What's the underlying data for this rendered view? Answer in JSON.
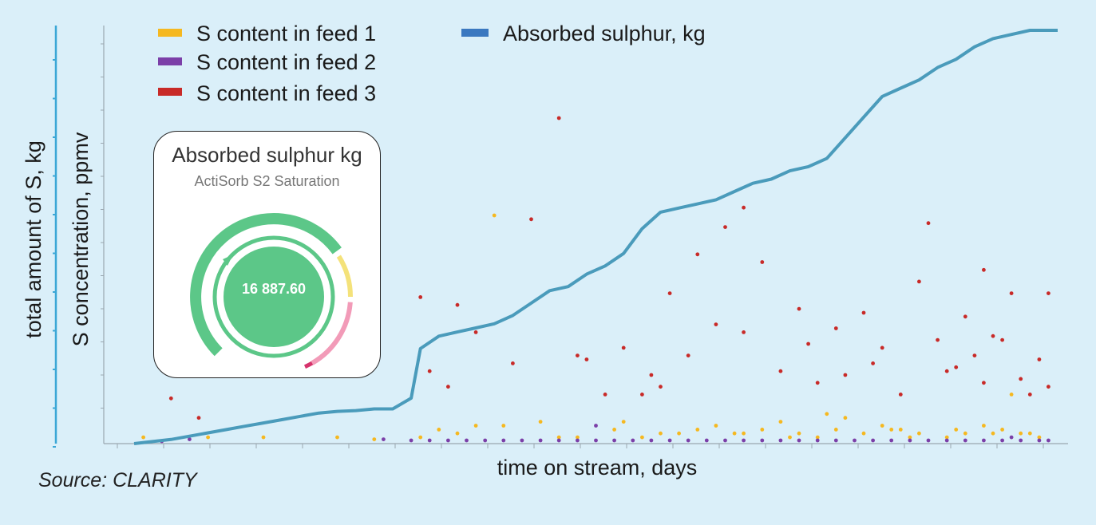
{
  "chart_data": {
    "type": "scatter",
    "ylabel_left": "total amount of S, kg",
    "ylabel_right": "S concentration, ppmv",
    "xlabel": "time on stream, days",
    "grid": false,
    "legend_position": "top",
    "x_ticks_shown": false,
    "y_ticks_shown": false,
    "legend": [
      {
        "name": "S content in feed 1",
        "color": "#f5b820"
      },
      {
        "name": "S content in feed 2",
        "color": "#7b3fa8"
      },
      {
        "name": "S content in feed 3",
        "color": "#c82a28"
      },
      {
        "name": "Absorbed sulphur, kg",
        "color": "#3a78c0"
      }
    ],
    "absorbed_line": {
      "color": "#4a9bbb",
      "x": [
        0,
        2,
        4,
        6,
        8,
        10,
        12,
        14,
        16,
        18,
        20,
        22,
        24,
        26,
        28,
        30,
        31,
        33,
        35,
        37,
        39,
        41,
        43,
        45,
        47,
        49,
        51,
        53,
        55,
        57,
        59,
        61,
        63,
        65,
        67,
        69,
        71,
        73,
        75,
        77,
        79,
        81,
        83,
        85,
        87,
        89,
        91,
        93,
        95,
        97,
        100
      ],
      "y": [
        0,
        0.5,
        1,
        1.8,
        2.6,
        3.4,
        4.2,
        5,
        5.8,
        6.6,
        7.4,
        7.8,
        8,
        8.4,
        8.4,
        11,
        23,
        26,
        27,
        28,
        29,
        31,
        34,
        37,
        38,
        41,
        43,
        46,
        52,
        56,
        57,
        58,
        59,
        61,
        63,
        64,
        66,
        67,
        69,
        74,
        79,
        84,
        86,
        88,
        91,
        93,
        96,
        98,
        99,
        100,
        100
      ]
    },
    "feed1_points": {
      "color": "#f5b820",
      "x": [
        1,
        8,
        14,
        22,
        26,
        31,
        33,
        35,
        37,
        40,
        44,
        48,
        52,
        55,
        59,
        63,
        65,
        68,
        70,
        72,
        74,
        76,
        79,
        81,
        83,
        85,
        88,
        90,
        92,
        94,
        96,
        98,
        46,
        53,
        61,
        66,
        71,
        77,
        84,
        89,
        93,
        97,
        39,
        57,
        75,
        82,
        95
      ],
      "y": [
        1,
        1,
        1,
        1,
        0.5,
        1,
        3,
        2,
        4,
        4,
        5,
        1,
        3,
        1,
        2,
        4,
        2,
        3,
        5,
        2,
        1,
        3,
        2,
        4,
        3,
        2,
        1,
        2,
        4,
        3,
        2,
        1,
        1,
        5,
        3,
        2,
        1,
        6,
        1,
        3,
        2,
        2,
        58,
        2,
        7,
        3,
        12
      ]
    },
    "feed2_points": {
      "color": "#7b3fa8",
      "x": [
        3,
        6,
        27,
        30,
        32,
        34,
        36,
        38,
        40,
        42,
        44,
        46,
        48,
        50,
        52,
        54,
        56,
        58,
        60,
        62,
        64,
        66,
        68,
        70,
        72,
        74,
        76,
        78,
        80,
        82,
        84,
        86,
        88,
        90,
        92,
        94,
        96,
        98,
        99,
        50,
        95
      ],
      "y": [
        0,
        0.5,
        0.5,
        0.2,
        0.2,
        0.2,
        0.2,
        0.2,
        0.2,
        0.2,
        0.2,
        0.2,
        0.2,
        0.2,
        0.2,
        0.2,
        0.2,
        0.2,
        0.2,
        0.2,
        0.2,
        0.2,
        0.2,
        0.2,
        0.2,
        0.2,
        0.2,
        0.2,
        0.2,
        0.2,
        0.2,
        0.2,
        0.2,
        0.2,
        0.2,
        0.2,
        0.2,
        0.2,
        0.2,
        4,
        1
      ]
    },
    "feed3_points": {
      "color": "#c82a28",
      "x": [
        3,
        4,
        7,
        31,
        32,
        35,
        37,
        43,
        46,
        49,
        51,
        53,
        56,
        58,
        60,
        63,
        64,
        66,
        68,
        70,
        72,
        74,
        76,
        79,
        81,
        83,
        85,
        87,
        88,
        90,
        91,
        92,
        93,
        95,
        96,
        98,
        99,
        41,
        57,
        61,
        73,
        77,
        89,
        94,
        97,
        34,
        48,
        55,
        66,
        80,
        86,
        92,
        99
      ],
      "y": [
        20,
        11,
        6,
        37,
        18,
        35,
        28,
        57,
        83,
        21,
        12,
        24,
        17,
        38,
        22,
        30,
        55,
        28,
        46,
        18,
        34,
        15,
        29,
        33,
        24,
        12,
        41,
        26,
        18,
        32,
        22,
        15,
        27,
        38,
        16,
        21,
        14,
        20,
        14,
        48,
        25,
        17,
        19,
        26,
        12,
        14,
        22,
        12,
        60,
        20,
        56,
        44,
        38
      ]
    }
  },
  "gauge": {
    "title": "Absorbed sulphur kg",
    "subtitle": "ActiSorb S2 Saturation",
    "value": "16 887.60",
    "fill_fraction": 0.7
  },
  "source": "Source: CLARITY"
}
